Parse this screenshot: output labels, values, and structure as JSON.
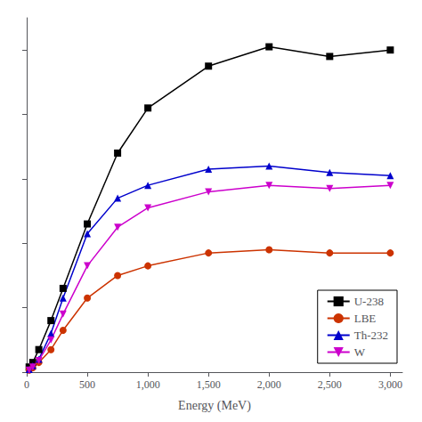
{
  "chart_data": {
    "type": "line",
    "xlabel": "Energy (MeV)",
    "x": [
      20,
      50,
      100,
      200,
      300,
      500,
      750,
      1000,
      1500,
      2000,
      2500,
      3000
    ],
    "series": [
      {
        "name": "U-238",
        "color": "#000000",
        "marker": "square",
        "values": [
          0.8,
          1.5,
          3.5,
          8.0,
          13.0,
          23.0,
          34.0,
          41.0,
          47.5,
          50.5,
          49.0,
          50.0
        ]
      },
      {
        "name": "LBE",
        "color": "#cc3300",
        "marker": "circle",
        "values": [
          0.3,
          0.7,
          1.5,
          3.5,
          6.5,
          11.5,
          15.0,
          16.5,
          18.5,
          19.0,
          18.5,
          18.5
        ]
      },
      {
        "name": "Th-232",
        "color": "#0000cc",
        "marker": "triangle-up",
        "values": [
          0.4,
          1.0,
          2.0,
          6.0,
          11.5,
          21.5,
          27.0,
          29.0,
          31.5,
          32.0,
          31.0,
          30.5
        ]
      },
      {
        "name": "W",
        "color": "#cc00cc",
        "marker": "triangle-down",
        "values": [
          0.3,
          0.8,
          1.8,
          5.0,
          9.0,
          16.5,
          22.5,
          25.5,
          28.0,
          29.0,
          28.5,
          29.0
        ]
      }
    ],
    "xlim": [
      0,
      3100
    ],
    "xticks": [
      0,
      500,
      1000,
      1500,
      2000,
      2500,
      3000
    ],
    "ylim": [
      0,
      55
    ],
    "yticks": [
      0,
      10,
      20,
      30,
      40,
      50
    ],
    "tick_labels": "x",
    "grid": false,
    "legend": "lower right"
  }
}
